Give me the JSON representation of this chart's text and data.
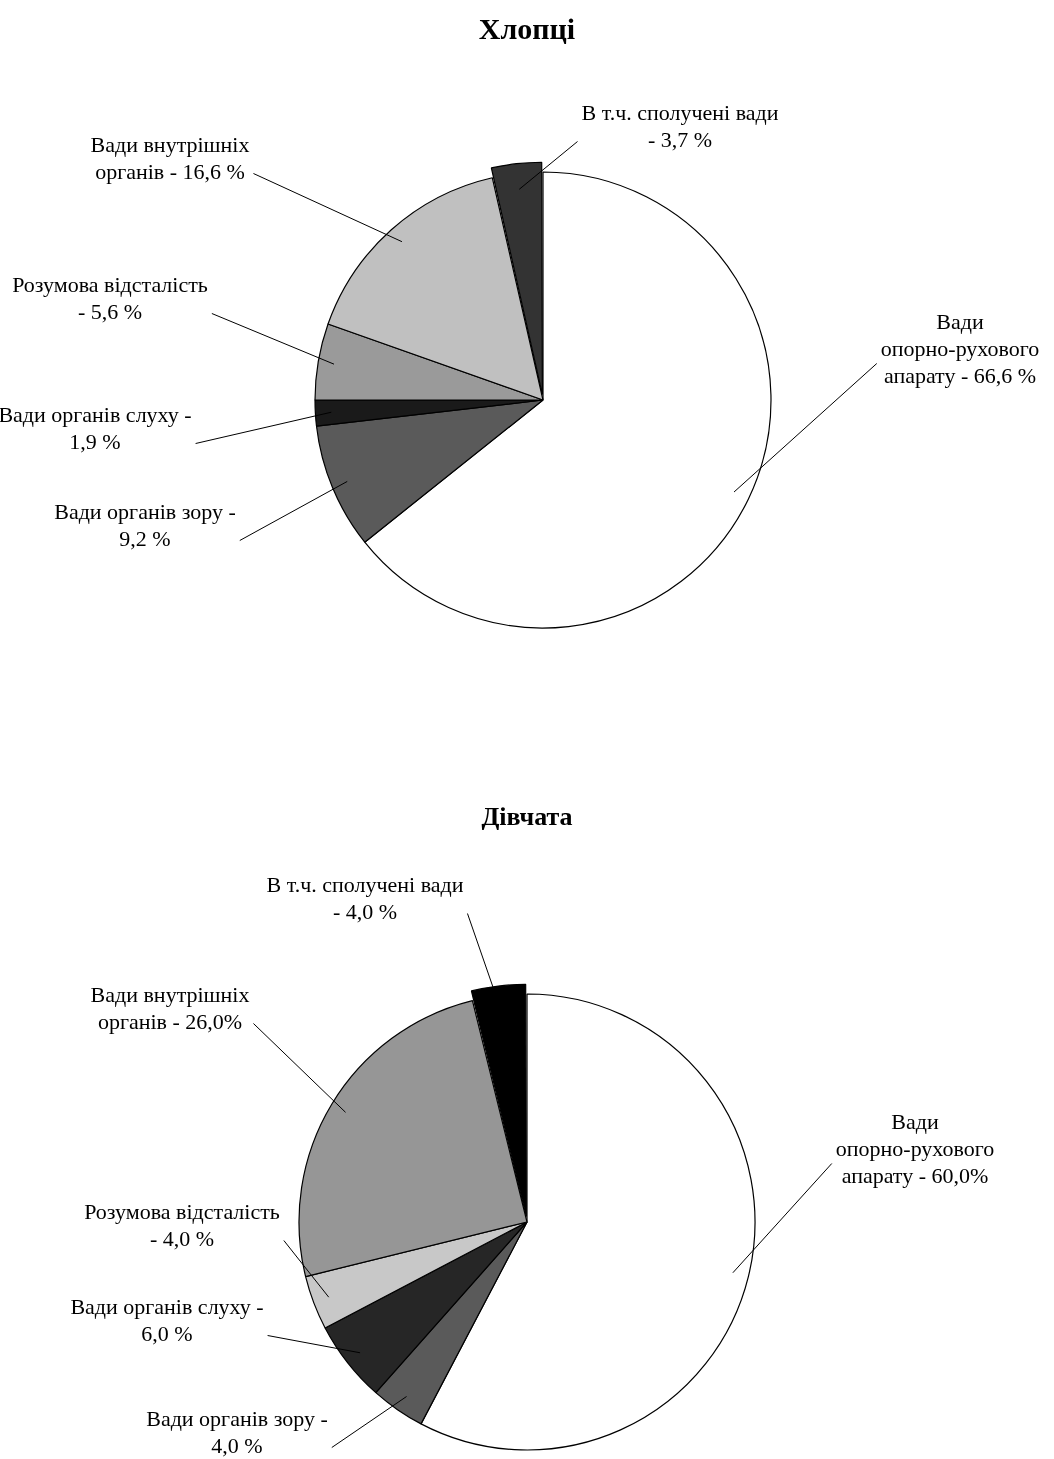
{
  "chart_data": [
    {
      "type": "pie",
      "title": "Хлопці",
      "categories": [
        "Вади опорно-рухового апарату -",
        "Вади органів зору -",
        "Вади органів слуху -",
        "Розумова відсталість -",
        "Вади внутрішніх органів -",
        "В т.ч. сполучені вади -"
      ],
      "values": [
        66.6,
        9.2,
        1.9,
        5.6,
        16.6,
        3.7
      ],
      "value_labels": [
        "66,6 %",
        "9,2 %",
        "1,9 %",
        "5,6 %",
        "16,6 %",
        "3,7 %"
      ],
      "colors": [
        "#ffffff",
        "#5a5a5a",
        "#1a1a1a",
        "#9a9a9a",
        "#c0c0c0",
        "#333333"
      ]
    },
    {
      "type": "pie",
      "title": "Дівчата",
      "categories": [
        "Вади опорно-рухового апарату -",
        "Вади органів зору -",
        "Вади органів слуху -",
        "Розумова відсталість -",
        "Вади внутрішніх органів -",
        "В т.ч. сполучені вади -"
      ],
      "values": [
        60.0,
        4.0,
        6.0,
        4.0,
        26.0,
        4.0
      ],
      "value_labels": [
        "60,0%",
        "4,0 %",
        "6,0 %",
        "4,0 %",
        "26,0%",
        "4,0 %"
      ],
      "colors": [
        "#ffffff",
        "#5a5a5a",
        "#262626",
        "#c8c8c8",
        "#969696",
        "#000000"
      ]
    }
  ]
}
